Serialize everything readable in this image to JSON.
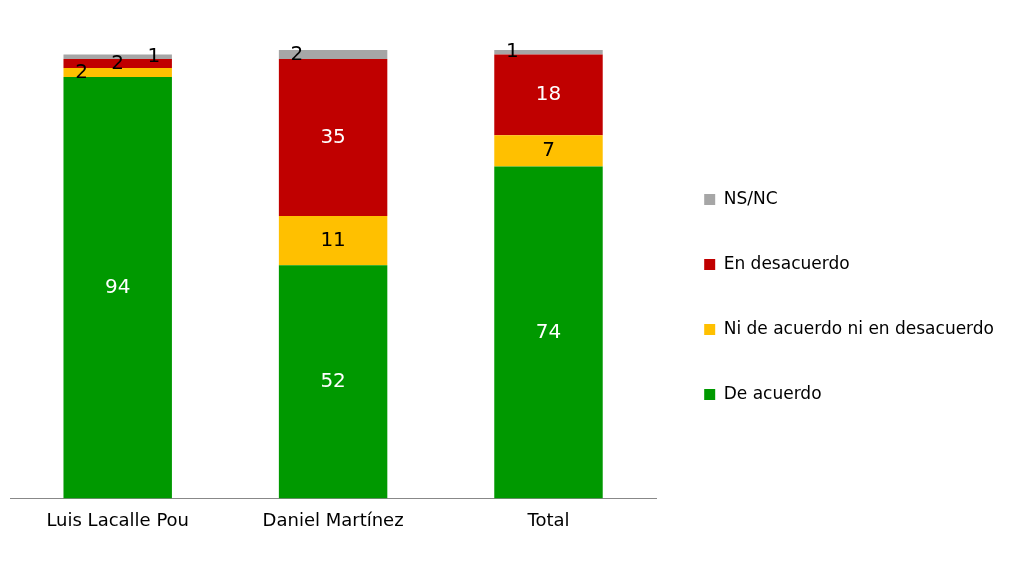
{
  "chart_data": {
    "type": "bar",
    "stacked": true,
    "categories": [
      "Luis Lacalle Pou",
      "Daniel Martínez",
      "Total"
    ],
    "series": [
      {
        "name": "De acuerdo",
        "color": "#009900",
        "values": [
          94,
          52,
          74
        ]
      },
      {
        "name": "Ni de acuerdo ni en desacuerdo",
        "color": "#ffc000",
        "values": [
          2,
          11,
          7
        ]
      },
      {
        "name": "En desacuerdo",
        "color": "#c00000",
        "values": [
          2,
          35,
          18
        ]
      },
      {
        "name": "NS/NC",
        "color": "#a6a6a6",
        "values": [
          1,
          2,
          1
        ]
      }
    ],
    "data_labels": true,
    "grid": false,
    "legend": "right",
    "tick_labels": "x"
  }
}
